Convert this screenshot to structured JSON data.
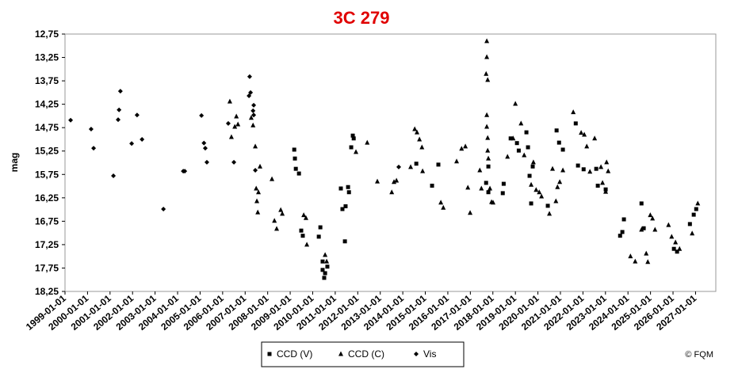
{
  "chart_data": {
    "type": "scatter",
    "title": "3C 279",
    "y_label": "mag",
    "credit": "© FQM",
    "xlim": [
      1999,
      2027.9
    ],
    "ylim": [
      18.25,
      12.75
    ],
    "xticks": [
      {
        "value": 1999,
        "label": "1999-01-01"
      },
      {
        "value": 2000,
        "label": "2000-01-01"
      },
      {
        "value": 2001,
        "label": "2001-01-01"
      },
      {
        "value": 2002,
        "label": "2002-01-01"
      },
      {
        "value": 2003,
        "label": "2003-01-01"
      },
      {
        "value": 2004,
        "label": "2004-01-01"
      },
      {
        "value": 2005,
        "label": "2005-01-01"
      },
      {
        "value": 2006,
        "label": "2006-01-01"
      },
      {
        "value": 2007,
        "label": "2007-01-01"
      },
      {
        "value": 2008,
        "label": "2008-01-01"
      },
      {
        "value": 2009,
        "label": "2009-01-01"
      },
      {
        "value": 2010,
        "label": "2010-01-01"
      },
      {
        "value": 2011,
        "label": "2011-01-01"
      },
      {
        "value": 2012,
        "label": "2012-01-01"
      },
      {
        "value": 2013,
        "label": "2013-01-01"
      },
      {
        "value": 2014,
        "label": "2014-01-01"
      },
      {
        "value": 2015,
        "label": "2015-01-01"
      },
      {
        "value": 2016,
        "label": "2016-01-01"
      },
      {
        "value": 2017,
        "label": "2017-01-01"
      },
      {
        "value": 2018,
        "label": "2018-01-01"
      },
      {
        "value": 2019,
        "label": "2019-01-01"
      },
      {
        "value": 2020,
        "label": "2020-01-01"
      },
      {
        "value": 2021,
        "label": "2021-01-01"
      },
      {
        "value": 2022,
        "label": "2022-01-01"
      },
      {
        "value": 2023,
        "label": "2023-01-01"
      },
      {
        "value": 2024,
        "label": "2024-01-01"
      },
      {
        "value": 2025,
        "label": "2025-01-01"
      },
      {
        "value": 2026,
        "label": "2026-01-01"
      },
      {
        "value": 2027,
        "label": "2027-01-01"
      }
    ],
    "yticks": [
      {
        "value": 12.75,
        "label": "12,75"
      },
      {
        "value": 13.25,
        "label": "13,25"
      },
      {
        "value": 13.75,
        "label": "13,75"
      },
      {
        "value": 14.25,
        "label": "14,25"
      },
      {
        "value": 14.75,
        "label": "14,75"
      },
      {
        "value": 15.25,
        "label": "15,25"
      },
      {
        "value": 15.75,
        "label": "15,75"
      },
      {
        "value": 16.25,
        "label": "16,25"
      },
      {
        "value": 16.75,
        "label": "16,75"
      },
      {
        "value": 17.25,
        "label": "17,25"
      },
      {
        "value": 17.75,
        "label": "17,75"
      },
      {
        "value": 18.25,
        "label": "18,25"
      }
    ],
    "series": [
      {
        "name": "CCD (V)",
        "color": "#000000",
        "marker": "square",
        "x": [
          2009.18,
          2009.21,
          2009.25,
          2009.39,
          2009.49,
          2009.56,
          2010.27,
          2010.34,
          2010.44,
          2010.44,
          2010.51,
          2010.55,
          2010.65,
          2011.25,
          2011.32,
          2011.43,
          2011.46,
          2011.57,
          2011.61,
          2011.71,
          2011.78,
          2011.82,
          2014.6,
          2015.3,
          2015.58,
          2017.7,
          2017.8,
          2017.8,
          2018.44,
          2018.48,
          2018.79,
          2019.07,
          2019.15,
          2019.49,
          2019.56,
          2019.63,
          2019.7,
          2019.77,
          2020.44,
          2020.83,
          2020.94,
          2021.11,
          2021.68,
          2021.78,
          2022.03,
          2022.59,
          2022.66,
          2023.01,
          2023.65,
          2023.75,
          2023.82,
          2024.6,
          2024.7,
          2026.04,
          2026.18,
          2026.75,
          2026.92,
          2027.03
        ],
        "values": [
          15.22,
          15.41,
          15.63,
          15.73,
          16.95,
          17.06,
          17.08,
          16.88,
          17.61,
          17.79,
          17.96,
          17.86,
          17.72,
          16.05,
          16.49,
          17.18,
          16.43,
          16.02,
          16.13,
          15.17,
          14.92,
          14.98,
          15.52,
          15.99,
          15.54,
          15.93,
          15.58,
          16.13,
          16.15,
          15.95,
          14.98,
          15.08,
          15.24,
          14.85,
          15.17,
          15.78,
          16.37,
          15.58,
          16.42,
          14.81,
          15.07,
          15.22,
          14.66,
          15.56,
          15.64,
          15.63,
          15.99,
          16.07,
          17.06,
          16.98,
          16.71,
          16.37,
          16.9,
          17.34,
          17.4,
          16.81,
          16.61,
          16.49
        ]
      },
      {
        "name": "CCD (C)",
        "color": "#000000",
        "marker": "triangle",
        "x": [
          2006.32,
          2006.39,
          2006.54,
          2006.61,
          2006.68,
          2007.27,
          2007.35,
          2007.45,
          2007.49,
          2007.52,
          2007.56,
          2007.59,
          2007.66,
          2008.19,
          2008.3,
          2008.4,
          2008.58,
          2008.65,
          2009.6,
          2009.7,
          2009.74,
          2010.55,
          2010.62,
          2011.92,
          2012.42,
          2012.87,
          2013.51,
          2013.61,
          2013.72,
          2014.35,
          2014.53,
          2014.63,
          2014.74,
          2014.85,
          2014.88,
          2015.69,
          2015.8,
          2016.39,
          2016.61,
          2016.78,
          2016.89,
          2016.99,
          2017.42,
          2017.49,
          2017.73,
          2017.73,
          2017.7,
          2017.77,
          2017.73,
          2017.73,
          2017.77,
          2017.77,
          2017.8,
          2017.87,
          2017.94,
          2018.01,
          2018.65,
          2018.9,
          2019.0,
          2019.25,
          2019.39,
          2019.7,
          2019.8,
          2019.92,
          2020.06,
          2020.16,
          2020.51,
          2020.65,
          2020.8,
          2020.87,
          2020.97,
          2021.11,
          2021.57,
          2021.92,
          2022.06,
          2022.17,
          2022.31,
          2022.52,
          2022.8,
          2022.87,
          2023.01,
          2023.05,
          2023.12,
          2024.11,
          2024.32,
          2024.6,
          2024.81,
          2024.88,
          2024.99,
          2025.09,
          2025.2,
          2025.8,
          2025.94,
          2026.11,
          2026.29,
          2026.85,
          2027.1
        ],
        "values": [
          14.19,
          14.95,
          14.73,
          14.51,
          14.68,
          14.54,
          14.7,
          15.15,
          16.05,
          16.32,
          16.56,
          16.13,
          15.58,
          15.85,
          16.74,
          16.91,
          16.51,
          16.59,
          16.62,
          16.68,
          17.25,
          17.47,
          17.61,
          15.27,
          15.07,
          15.9,
          16.13,
          15.91,
          15.88,
          15.59,
          14.78,
          14.85,
          15.0,
          15.17,
          15.68,
          16.35,
          16.46,
          15.47,
          15.2,
          15.15,
          16.03,
          16.57,
          15.66,
          16.05,
          12.9,
          13.24,
          13.6,
          13.73,
          14.48,
          14.73,
          14.97,
          15.24,
          15.41,
          16.05,
          16.34,
          16.35,
          15.37,
          14.98,
          14.24,
          14.66,
          15.34,
          15.97,
          15.49,
          16.08,
          16.13,
          16.22,
          16.59,
          15.63,
          16.32,
          16.02,
          15.91,
          15.66,
          14.42,
          14.86,
          14.9,
          15.15,
          15.69,
          14.98,
          15.59,
          15.93,
          16.12,
          15.49,
          15.68,
          17.5,
          17.61,
          16.93,
          17.44,
          17.62,
          16.62,
          16.69,
          16.93,
          16.83,
          17.08,
          17.2,
          17.34,
          17.01,
          16.37
        ]
      },
      {
        "name": "Vis",
        "color": "#000000",
        "marker": "diamond",
        "x": [
          1999.25,
          2000.16,
          2000.27,
          2001.15,
          2001.36,
          2001.4,
          2001.46,
          2001.96,
          2002.2,
          2002.42,
          2003.37,
          2004.25,
          2004.32,
          2005.06,
          2005.17,
          2005.23,
          2005.3,
          2006.25,
          2006.5,
          2007.17,
          2007.2,
          2007.24,
          2007.38,
          2007.35,
          2007.38,
          2007.45,
          2013.82
        ],
        "values": [
          14.59,
          14.78,
          15.19,
          15.78,
          14.58,
          14.37,
          13.97,
          15.09,
          14.48,
          15.0,
          16.49,
          15.68,
          15.68,
          14.49,
          15.08,
          15.19,
          15.49,
          14.66,
          15.49,
          14.07,
          13.66,
          14.0,
          14.27,
          14.39,
          14.48,
          15.66,
          15.59
        ]
      }
    ]
  }
}
